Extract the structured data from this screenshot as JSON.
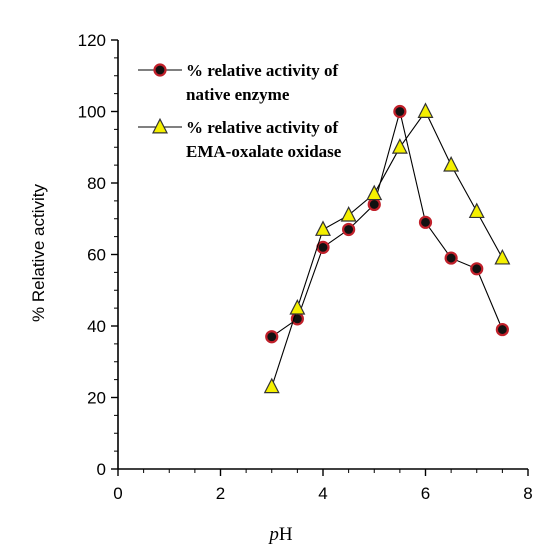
{
  "chart_data": {
    "type": "line",
    "xlabel_italic": "p",
    "xlabel_rest": "H",
    "ylabel": "% Relative activity",
    "xlim": [
      0,
      8
    ],
    "ylim": [
      0,
      120
    ],
    "x_ticks": [
      "0",
      "2",
      "4",
      "6",
      "8"
    ],
    "y_ticks": [
      "0",
      "20",
      "40",
      "60",
      "80",
      "100",
      "120"
    ],
    "grid": false,
    "legend_position": "top-left",
    "series": [
      {
        "name_line1": "% relative activity of",
        "name_line2": "native enzyme",
        "marker": "circle",
        "marker_fill": "#111111",
        "marker_edge": "#c0202a",
        "x": [
          3.0,
          3.5,
          4.0,
          4.5,
          5.0,
          5.5,
          6.0,
          6.5,
          7.0,
          7.5
        ],
        "y": [
          37,
          42,
          62,
          67,
          74,
          100,
          69,
          59,
          56,
          39
        ]
      },
      {
        "name_line1": "% relative activity of",
        "name_line2": "EMA-oxalate oxidase",
        "marker": "triangle",
        "marker_fill": "#f5f000",
        "marker_edge": "#333333",
        "x": [
          3.0,
          3.5,
          4.0,
          4.5,
          5.0,
          5.5,
          6.0,
          6.5,
          7.0,
          7.5
        ],
        "y": [
          23,
          45,
          67,
          71,
          77,
          90,
          100,
          85,
          72,
          59
        ]
      }
    ]
  }
}
